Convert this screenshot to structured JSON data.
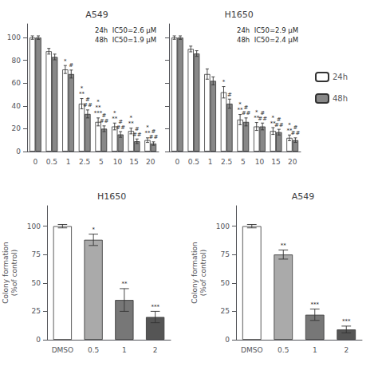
{
  "chart_data": [
    {
      "type": "bar",
      "title": "A549",
      "categories": [
        "0",
        "0.5",
        "1",
        "2.5",
        "5",
        "10",
        "15",
        "20"
      ],
      "series": [
        {
          "name": "24h",
          "color": "#ffffff",
          "values": [
            100,
            88,
            72,
            42,
            26,
            22,
            18,
            10
          ],
          "errors": [
            1.5,
            2.5,
            3.5,
            4.5,
            3.5,
            3,
            2.5,
            2
          ]
        },
        {
          "name": "48h",
          "color": "#888888",
          "values": [
            100,
            83,
            68,
            33,
            20,
            15,
            9,
            7
          ],
          "errors": [
            1.5,
            2.5,
            3.5,
            3.5,
            2.5,
            2.5,
            2,
            1.5
          ]
        }
      ],
      "ylim": [
        0,
        112
      ],
      "yticks": [
        0,
        20,
        40,
        60,
        80,
        100
      ],
      "grid": false,
      "annotations": [
        {
          "text": "24h  IC50=2.6 μM"
        },
        {
          "text": "48h  IC50=1.9 μM"
        },
        {
          "x": "1",
          "series": "24h",
          "text": "*"
        },
        {
          "x": "2.5",
          "series": "24h",
          "text": "*\n**"
        },
        {
          "x": "5",
          "series": "24h",
          "text": "*\n**\n***"
        },
        {
          "x": "10",
          "series": "24h",
          "text": "*\n**"
        },
        {
          "x": "15",
          "series": "24h",
          "text": "*\n**"
        },
        {
          "x": "20",
          "series": "24h",
          "text": "*\n**"
        },
        {
          "x": "1",
          "series": "48h",
          "text": "#"
        },
        {
          "x": "2.5",
          "series": "48h",
          "text": "#\n##"
        },
        {
          "x": "5",
          "series": "48h",
          "text": "#\n##"
        },
        {
          "x": "10",
          "series": "48h",
          "text": "#\n##"
        },
        {
          "x": "15",
          "series": "48h",
          "text": "#\n##"
        },
        {
          "x": "20",
          "series": "48h",
          "text": "#\n##"
        }
      ]
    },
    {
      "type": "bar",
      "title": "H1650",
      "categories": [
        "0",
        "0.5",
        "1",
        "2.5",
        "5",
        "10",
        "15",
        "20"
      ],
      "series": [
        {
          "name": "24h",
          "color": "#ffffff",
          "values": [
            100,
            90,
            68,
            52,
            28,
            22,
            18,
            12
          ],
          "errors": [
            1.5,
            2.5,
            4.5,
            5,
            4.5,
            3.5,
            3,
            2.5
          ]
        },
        {
          "name": "48h",
          "color": "#888888",
          "values": [
            100,
            86,
            62,
            42,
            26,
            22,
            17,
            10
          ],
          "errors": [
            1.5,
            2.5,
            3.5,
            4,
            3.5,
            3,
            2.5,
            2
          ]
        }
      ],
      "ylim": [
        0,
        112
      ],
      "yticks": [
        0,
        20,
        40,
        60,
        80,
        100
      ],
      "grid": false,
      "tick_labels": "x",
      "legend": "right",
      "annotations": [
        {
          "text": "24h  IC50=2.9 μM"
        },
        {
          "text": "48h  IC50=2.4 μM"
        },
        {
          "x": "2.5",
          "series": "24h",
          "text": "*"
        },
        {
          "x": "5",
          "series": "24h",
          "text": "*\n**"
        },
        {
          "x": "10",
          "series": "24h",
          "text": "*\n**"
        },
        {
          "x": "15",
          "series": "24h",
          "text": "*\n**"
        },
        {
          "x": "20",
          "series": "24h",
          "text": "*\n**"
        },
        {
          "x": "2.5",
          "series": "48h",
          "text": "#"
        },
        {
          "x": "5",
          "series": "48h",
          "text": "#\n##"
        },
        {
          "x": "10",
          "series": "48h",
          "text": "#\n##"
        },
        {
          "x": "15",
          "series": "48h",
          "text": "#\n##"
        },
        {
          "x": "20",
          "series": "48h",
          "text": "#\n##"
        }
      ]
    },
    {
      "type": "bar",
      "title": "H1650",
      "ylabel": "Colony formation\n(%of control)",
      "categories": [
        "DMSO",
        "0.5",
        "1",
        "2"
      ],
      "values": [
        100,
        88,
        35,
        20
      ],
      "errors": [
        1.5,
        5,
        10,
        5
      ],
      "colors": [
        "#ffffff",
        "#aaaaaa",
        "#777777",
        "#555555"
      ],
      "ylim": [
        0,
        118
      ],
      "yticks": [
        0,
        25,
        50,
        75,
        100
      ],
      "grid": false,
      "annotations": [
        {
          "x": "0.5",
          "text": "*"
        },
        {
          "x": "1",
          "text": "**"
        },
        {
          "x": "2",
          "text": "***"
        }
      ]
    },
    {
      "type": "bar",
      "title": "A549",
      "ylabel": "Colony formation\n(%of control)",
      "categories": [
        "DMSO",
        "0.5",
        "1",
        "2"
      ],
      "values": [
        100,
        75,
        22,
        9
      ],
      "errors": [
        1.5,
        4,
        5,
        3
      ],
      "colors": [
        "#ffffff",
        "#aaaaaa",
        "#777777",
        "#555555"
      ],
      "ylim": [
        0,
        118
      ],
      "yticks": [
        0,
        25,
        50,
        75,
        100
      ],
      "grid": false,
      "annotations": [
        {
          "x": "0.5",
          "text": "**"
        },
        {
          "x": "1",
          "text": "***"
        },
        {
          "x": "2",
          "text": "***"
        }
      ]
    }
  ]
}
